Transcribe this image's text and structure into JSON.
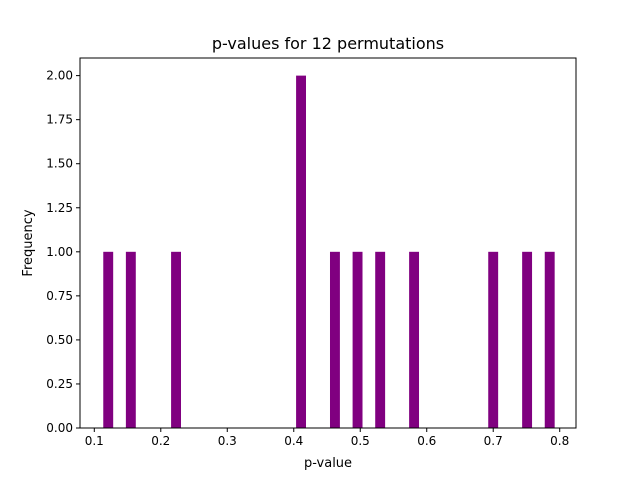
{
  "chart_data": {
    "type": "bar",
    "subtype": "histogram",
    "title": "p-values for 12 permutations",
    "xlabel": "p-value",
    "ylabel": "Frequency",
    "xlim": [
      0.0785,
      0.8245
    ],
    "ylim": [
      0,
      2.1
    ],
    "bin_width": 0.0149,
    "bars": [
      {
        "left": 0.1135,
        "value": 1
      },
      {
        "left": 0.1475,
        "value": 1
      },
      {
        "left": 0.2155,
        "value": 1
      },
      {
        "left": 0.4035,
        "value": 2
      },
      {
        "left": 0.4545,
        "value": 1
      },
      {
        "left": 0.4885,
        "value": 1
      },
      {
        "left": 0.5225,
        "value": 1
      },
      {
        "left": 0.5735,
        "value": 1
      },
      {
        "left": 0.6925,
        "value": 1
      },
      {
        "left": 0.7435,
        "value": 1
      },
      {
        "left": 0.7775,
        "value": 1
      }
    ],
    "xticks": [
      {
        "value": 0.1,
        "label": "0.1"
      },
      {
        "value": 0.2,
        "label": "0.2"
      },
      {
        "value": 0.3,
        "label": "0.3"
      },
      {
        "value": 0.4,
        "label": "0.4"
      },
      {
        "value": 0.5,
        "label": "0.5"
      },
      {
        "value": 0.6,
        "label": "0.6"
      },
      {
        "value": 0.7,
        "label": "0.7"
      },
      {
        "value": 0.8,
        "label": "0.8"
      }
    ],
    "yticks": [
      {
        "value": 0,
        "label": "0.00"
      },
      {
        "value": 0.25,
        "label": "0.25"
      },
      {
        "value": 0.5,
        "label": "0.50"
      },
      {
        "value": 0.75,
        "label": "0.75"
      },
      {
        "value": 1,
        "label": "1.00"
      },
      {
        "value": 1.25,
        "label": "1.25"
      },
      {
        "value": 1.5,
        "label": "1.50"
      },
      {
        "value": 1.75,
        "label": "1.75"
      },
      {
        "value": 2,
        "label": "2.00"
      }
    ],
    "bar_color": "#800080",
    "grid": false,
    "legend": false
  }
}
